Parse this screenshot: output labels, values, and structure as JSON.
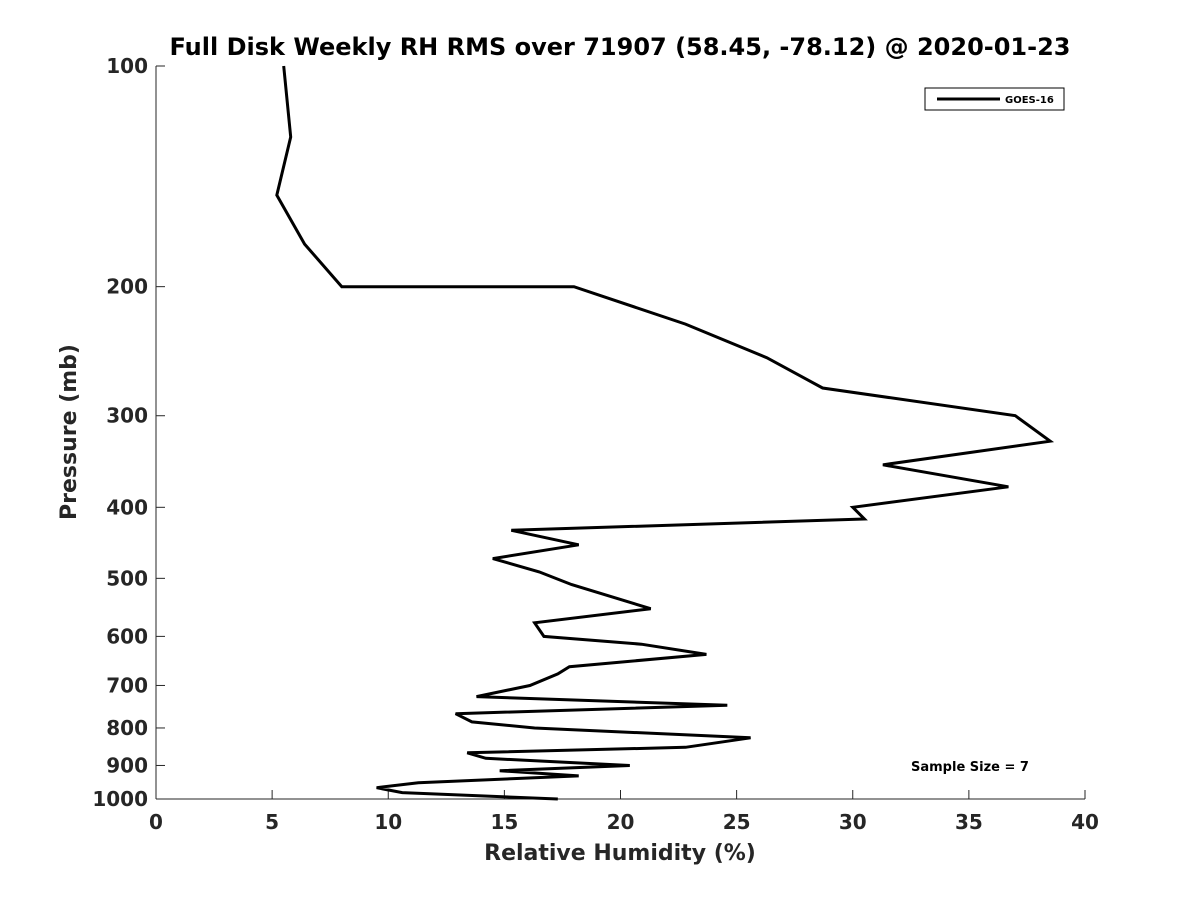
{
  "chart_data": {
    "type": "line",
    "title": "Full Disk Weekly RH RMS over 71907 (58.45, -78.12) @ 2020-01-23",
    "xlabel": "Relative Humidity (%)",
    "ylabel": "Pressure (mb)",
    "xlim": [
      0,
      40
    ],
    "ylim": [
      1000,
      100
    ],
    "yscale": "log",
    "grid": false,
    "legend_position": "top-right",
    "x_ticks": [
      "0",
      "5",
      "10",
      "15",
      "20",
      "25",
      "30",
      "35",
      "40"
    ],
    "y_ticks": [
      "100",
      "200",
      "300",
      "400",
      "500",
      "600",
      "700",
      "800",
      "900",
      "1000"
    ],
    "annotation": "Sample Size = 7",
    "series": [
      {
        "name": "GOES-16",
        "color": "#000000",
        "points": [
          [
            5.5,
            100
          ],
          [
            5.8,
            125
          ],
          [
            5.2,
            150
          ],
          [
            6.4,
            175
          ],
          [
            8.0,
            200
          ],
          [
            18.0,
            200
          ],
          [
            22.8,
            225
          ],
          [
            26.3,
            250
          ],
          [
            28.7,
            275
          ],
          [
            37.0,
            300
          ],
          [
            38.5,
            325
          ],
          [
            31.3,
            350
          ],
          [
            36.7,
            375
          ],
          [
            30.0,
            400
          ],
          [
            30.5,
            415
          ],
          [
            15.3,
            430
          ],
          [
            18.2,
            450
          ],
          [
            14.5,
            470
          ],
          [
            16.5,
            490
          ],
          [
            17.9,
            510
          ],
          [
            21.3,
            550
          ],
          [
            16.3,
            575
          ],
          [
            16.7,
            600
          ],
          [
            20.9,
            615
          ],
          [
            23.7,
            635
          ],
          [
            17.8,
            660
          ],
          [
            17.3,
            675
          ],
          [
            16.1,
            700
          ],
          [
            13.8,
            725
          ],
          [
            24.6,
            745
          ],
          [
            12.9,
            765
          ],
          [
            13.6,
            785
          ],
          [
            16.3,
            800
          ],
          [
            25.6,
            825
          ],
          [
            22.8,
            850
          ],
          [
            13.4,
            865
          ],
          [
            14.2,
            880
          ],
          [
            20.4,
            900
          ],
          [
            14.8,
            915
          ],
          [
            18.2,
            930
          ],
          [
            11.3,
            950
          ],
          [
            9.5,
            965
          ],
          [
            10.6,
            980
          ],
          [
            17.3,
            1000
          ]
        ]
      }
    ]
  }
}
